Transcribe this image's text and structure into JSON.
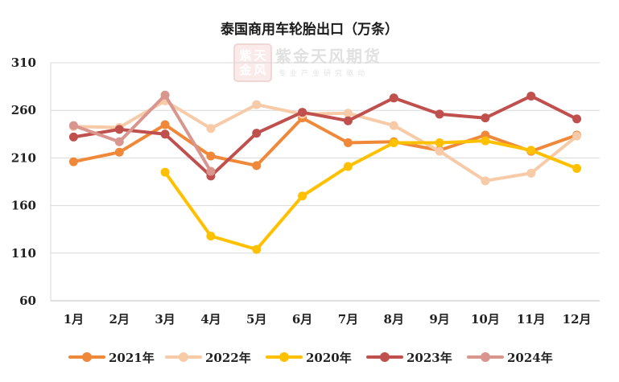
{
  "chart_data": {
    "type": "line",
    "title": "泰国商用车轮胎出口（万条）",
    "xlabel": "",
    "ylabel": "",
    "categories": [
      "1月",
      "2月",
      "3月",
      "4月",
      "5月",
      "6月",
      "7月",
      "8月",
      "9月",
      "10月",
      "11月",
      "12月"
    ],
    "ylim": [
      60,
      310
    ],
    "yticks": [
      60,
      110,
      160,
      210,
      260,
      310
    ],
    "grid": "horizontal",
    "legend_position": "bottom",
    "series": [
      {
        "name": "2021年",
        "color": "#f0883a",
        "values": [
          206,
          216,
          245,
          212,
          202,
          252,
          226,
          227,
          218,
          234,
          217,
          234
        ]
      },
      {
        "name": "2022年",
        "color": "#f8cba8",
        "values": [
          243,
          242,
          270,
          241,
          266,
          256,
          257,
          244,
          217,
          186,
          194,
          233
        ]
      },
      {
        "name": "2020年",
        "color": "#ffc000",
        "values": [
          null,
          null,
          195,
          128,
          114,
          170,
          201,
          226,
          226,
          228,
          218,
          199
        ]
      },
      {
        "name": "2023年",
        "color": "#c0504d",
        "values": [
          232,
          240,
          235,
          191,
          236,
          258,
          249,
          273,
          256,
          252,
          275,
          251
        ]
      },
      {
        "name": "2024年",
        "color": "#d8968f",
        "values": [
          244,
          227,
          276,
          196,
          null,
          null,
          null,
          null,
          null,
          null,
          null,
          null
        ]
      }
    ]
  },
  "watermark": {
    "seal_chars": [
      "紫",
      "天",
      "金",
      "风"
    ],
    "name": "紫金天风期货",
    "tagline": "专业产业研究驱动"
  }
}
